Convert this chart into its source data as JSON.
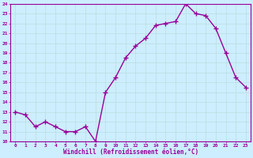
{
  "x": [
    0,
    1,
    2,
    3,
    4,
    5,
    6,
    7,
    8,
    9,
    10,
    11,
    12,
    13,
    14,
    15,
    16,
    17,
    18,
    19,
    20,
    21,
    22,
    23
  ],
  "y": [
    13.0,
    12.7,
    11.5,
    12.0,
    11.5,
    11.0,
    11.0,
    11.5,
    10.0,
    15.0,
    16.5,
    18.5,
    19.7,
    20.5,
    21.8,
    22.0,
    22.2,
    24.0,
    23.0,
    22.8,
    21.5,
    19.0,
    16.5,
    15.5
  ],
  "line_color": "#990099",
  "marker": "+",
  "marker_size": 4,
  "bg_color": "#cceeff",
  "grid_color": "#bbdddd",
  "xlabel": "Windchill (Refroidissement éolien,°C)",
  "xlabel_color": "#990099",
  "tick_color": "#990099",
  "ylim": [
    10,
    24
  ],
  "xlim": [
    -0.5,
    23.5
  ],
  "yticks": [
    10,
    11,
    12,
    13,
    14,
    15,
    16,
    17,
    18,
    19,
    20,
    21,
    22,
    23,
    24
  ],
  "xticks": [
    0,
    1,
    2,
    3,
    4,
    5,
    6,
    7,
    8,
    9,
    10,
    11,
    12,
    13,
    14,
    15,
    16,
    17,
    18,
    19,
    20,
    21,
    22,
    23
  ],
  "xtick_labels": [
    "0",
    "1",
    "2",
    "3",
    "4",
    "5",
    "6",
    "7",
    "8",
    "9",
    "10",
    "11",
    "12",
    "13",
    "14",
    "15",
    "16",
    "17",
    "18",
    "19",
    "20",
    "21",
    "22",
    "23"
  ],
  "ytick_labels": [
    "10",
    "11",
    "12",
    "13",
    "14",
    "15",
    "16",
    "17",
    "18",
    "19",
    "20",
    "21",
    "22",
    "23",
    "24"
  ],
  "spine_color": "#990099",
  "line_width": 1.0,
  "grid_lw": 0.5
}
